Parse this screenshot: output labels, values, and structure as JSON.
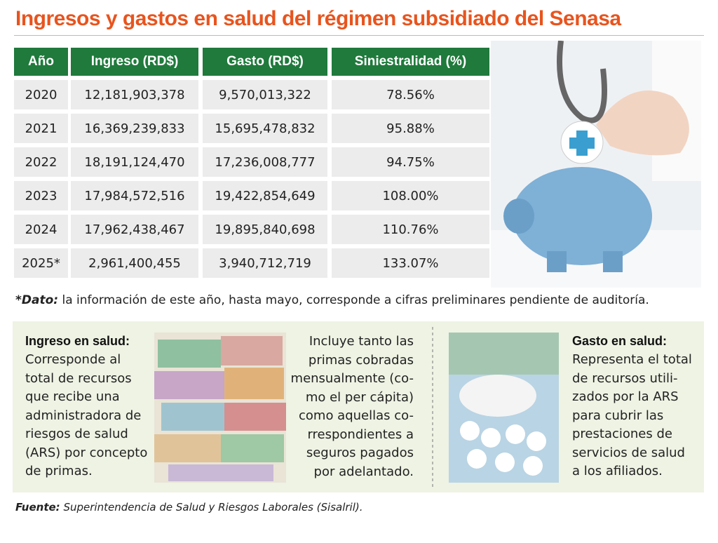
{
  "title": "Ingresos y gastos en salud del régimen subsidiado del Senasa",
  "table": {
    "headers": [
      "Año",
      "Ingreso (RD$)",
      "Gasto (RD$)",
      "Siniestralidad (%)"
    ],
    "rows": [
      [
        "2020",
        "12,181,903,378",
        "9,570,013,322",
        "78.56%"
      ],
      [
        "2021",
        "16,369,239,833",
        "15,695,478,832",
        "95.88%"
      ],
      [
        "2022",
        "18,191,124,470",
        "17,236,008,777",
        "94.75%"
      ],
      [
        "2023",
        "17,984,572,516",
        "19,422,854,649",
        "108.00%"
      ],
      [
        "2024",
        "17,962,438,467",
        "19,895,840,698",
        "110.76%"
      ],
      [
        "2025*",
        "2,961,400,455",
        "3,940,712,719",
        "133.07%"
      ]
    ]
  },
  "note": {
    "label": "*Dato:",
    "text": "la información de este año, hasta mayo, corresponde a cifras preliminares pendiente de auditoría."
  },
  "ingreso": {
    "title": "Ingreso en salud:",
    "lines": [
      "Corresponde al",
      "total de recursos",
      "que recibe una",
      "administradora de",
      "riesgos de salud",
      "(ARS) por concepto",
      "de primas."
    ],
    "more": [
      "Incluye tanto las",
      "primas cobradas",
      "mensualmente (co-",
      "mo el per cápita)",
      "como aquellas co-",
      "rrespondientes a",
      "seguros pagados",
      "por adelantado."
    ]
  },
  "gasto": {
    "title": "Gasto en salud:",
    "lines": [
      "Representa el total",
      "de recursos utili-",
      "zados por la ARS",
      "para cubrir las",
      "prestaciones de",
      "servicios de salud",
      "a los afiliados."
    ]
  },
  "source": {
    "label": "Fuente:",
    "text": "Superintendencia de Salud y Riesgos Laborales (Sisalril)."
  }
}
